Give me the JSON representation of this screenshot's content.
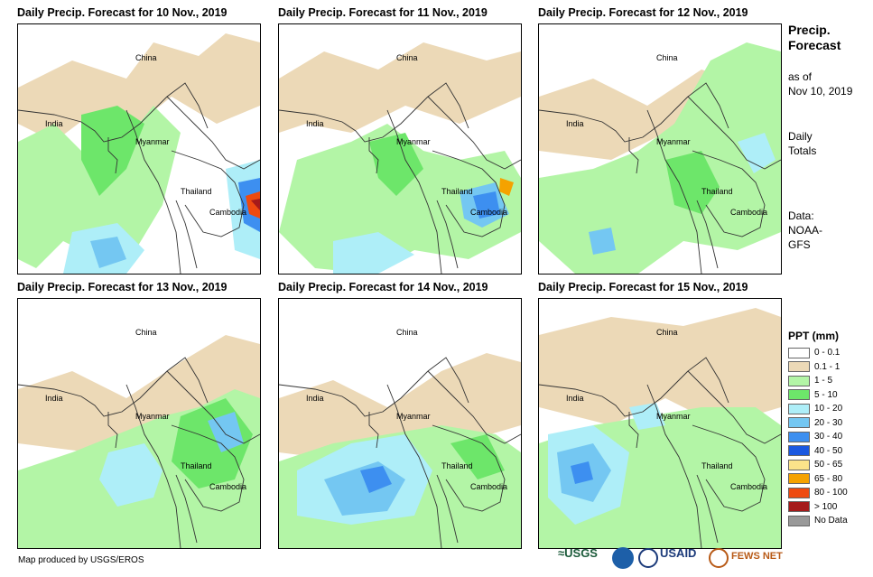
{
  "panels": [
    {
      "title": "Daily Precip. Forecast for 10 Nov., 2019",
      "labels": {
        "china": "China",
        "india": "India",
        "myanmar": "Myanmar",
        "thailand": "Thailand",
        "cambodia": "Cambodia"
      }
    },
    {
      "title": "Daily Precip. Forecast for 11 Nov., 2019",
      "labels": {
        "china": "China",
        "india": "India",
        "myanmar": "Myanmar",
        "thailand": "Thailand",
        "cambodia": "Cambodia"
      }
    },
    {
      "title": "Daily Precip. Forecast for 12 Nov., 2019",
      "labels": {
        "china": "China",
        "india": "India",
        "myanmar": "Myanmar",
        "thailand": "Thailand",
        "cambodia": "Cambodia"
      }
    },
    {
      "title": "Daily Precip. Forecast for 13 Nov., 2019",
      "labels": {
        "china": "China",
        "india": "India",
        "myanmar": "Myanmar",
        "thailand": "Thailand",
        "cambodia": "Cambodia"
      }
    },
    {
      "title": "Daily Precip. Forecast for 14 Nov., 2019",
      "labels": {
        "china": "China",
        "india": "India",
        "myanmar": "Myanmar",
        "thailand": "Thailand",
        "cambodia": "Cambodia"
      }
    },
    {
      "title": "Daily Precip. Forecast for 15 Nov., 2019",
      "labels": {
        "china": "China",
        "india": "India",
        "myanmar": "Myanmar",
        "thailand": "Thailand",
        "cambodia": "Cambodia"
      }
    }
  ],
  "side": {
    "heading1": "Precip.",
    "heading2": "Forecast",
    "asof1": "as of",
    "asof2": "Nov 10, 2019",
    "daily1": "Daily",
    "daily2": "Totals",
    "data1": "Data:",
    "data2": "NOAA-",
    "data3": "GFS"
  },
  "legend": {
    "title": "PPT (mm)",
    "items": [
      {
        "label": "0 - 0.1",
        "color": "#ffffff"
      },
      {
        "label": "0.1 - 1",
        "color": "#ecd9b7"
      },
      {
        "label": "1 - 5",
        "color": "#b3f5a6"
      },
      {
        "label": "5 - 10",
        "color": "#6de66a"
      },
      {
        "label": "10 - 20",
        "color": "#aeeef8"
      },
      {
        "label": "20 - 30",
        "color": "#74c7f2"
      },
      {
        "label": "30 - 40",
        "color": "#3d8ff0"
      },
      {
        "label": "40 - 50",
        "color": "#1a58e0"
      },
      {
        "label": "50 - 65",
        "color": "#fbe38a"
      },
      {
        "label": "65 - 80",
        "color": "#f5a200"
      },
      {
        "label": "80 - 100",
        "color": "#ee4a10"
      },
      {
        "label": "> 100",
        "color": "#a51a1a"
      },
      {
        "label": "No Data",
        "color": "#999999"
      }
    ]
  },
  "credit": "Map produced by USGS/EROS",
  "logos": {
    "usgs": "≈USGS",
    "usaid": "USAID",
    "fewsnet": "FEWS NET"
  }
}
